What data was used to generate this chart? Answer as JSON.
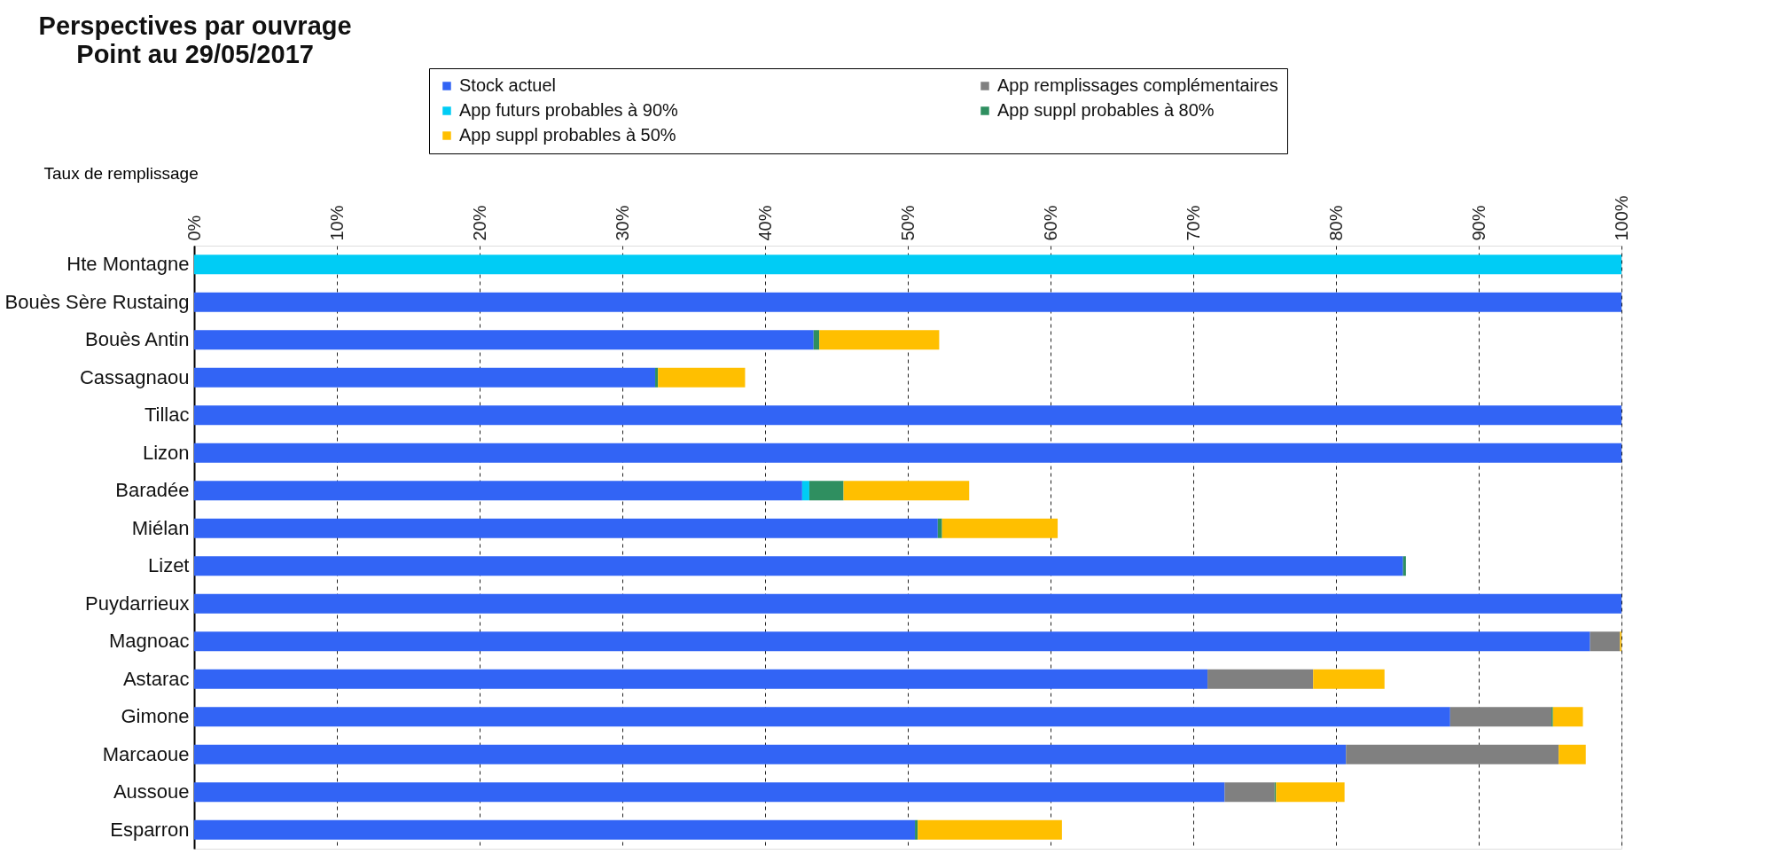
{
  "chart_data": {
    "type": "bar",
    "orientation": "horizontal",
    "stacked": true,
    "title": "Perspectives par ouvrage",
    "subtitle": "Point au 29/05/2017",
    "xlabel": "Taux de remplissage",
    "categories": [
      "Hte Montagne",
      "Bouès Sère Rustaing",
      "Bouès Antin",
      "Cassagnaou",
      "Tillac",
      "Lizon",
      "Baradée",
      "Miélan",
      "Lizet",
      "Puydarrieux",
      "Magnoac",
      "Astarac",
      "Gimone",
      "Marcaoue",
      "Aussoue",
      "Esparron"
    ],
    "series": [
      {
        "name": "Stock actuel",
        "color": "#3264f5",
        "values": [
          0,
          100,
          43.4,
          32.3,
          100,
          100,
          42.6,
          52.1,
          84.7,
          100,
          97.8,
          71.0,
          88.0,
          80.7,
          72.2,
          50.5
        ]
      },
      {
        "name": "App remplissages complémentaires",
        "color": "#808080",
        "values": [
          0,
          0,
          0,
          0,
          0,
          0,
          0,
          0,
          0,
          0,
          2.1,
          7.4,
          7.1,
          14.9,
          3.5,
          0
        ]
      },
      {
        "name": "App futurs probables à  90%",
        "color": "#00ccf5",
        "values": [
          100,
          0,
          0,
          0,
          0,
          0,
          0.5,
          0,
          0,
          0,
          0,
          0,
          0,
          0,
          0,
          0
        ]
      },
      {
        "name": "App suppl probables à  80%",
        "color": "#2f8f60",
        "values": [
          0,
          0,
          0.4,
          0.2,
          0,
          0,
          2.4,
          0.3,
          0.2,
          0,
          0,
          0,
          0.1,
          0,
          0.1,
          0.2
        ]
      },
      {
        "name": "App suppl probables à  50%",
        "color": "#ffbf00",
        "values": [
          0,
          0,
          8.4,
          6.1,
          0,
          0,
          8.8,
          8.1,
          0,
          0,
          0.1,
          5.0,
          2.1,
          1.9,
          4.8,
          10.1
        ]
      }
    ],
    "xlim": [
      0,
      100
    ],
    "xticks": [
      {
        "value": 0,
        "label": "0%"
      },
      {
        "value": 10,
        "label": "10%"
      },
      {
        "value": 20,
        "label": "20%"
      },
      {
        "value": 30,
        "label": "30%"
      },
      {
        "value": 40,
        "label": "40%"
      },
      {
        "value": 50,
        "label": "50%"
      },
      {
        "value": 60,
        "label": "60%"
      },
      {
        "value": 70,
        "label": "70%"
      },
      {
        "value": 80,
        "label": "80%"
      },
      {
        "value": 90,
        "label": "90%"
      },
      {
        "value": 100,
        "label": "100%"
      }
    ],
    "grid": "x",
    "legend": "top"
  }
}
